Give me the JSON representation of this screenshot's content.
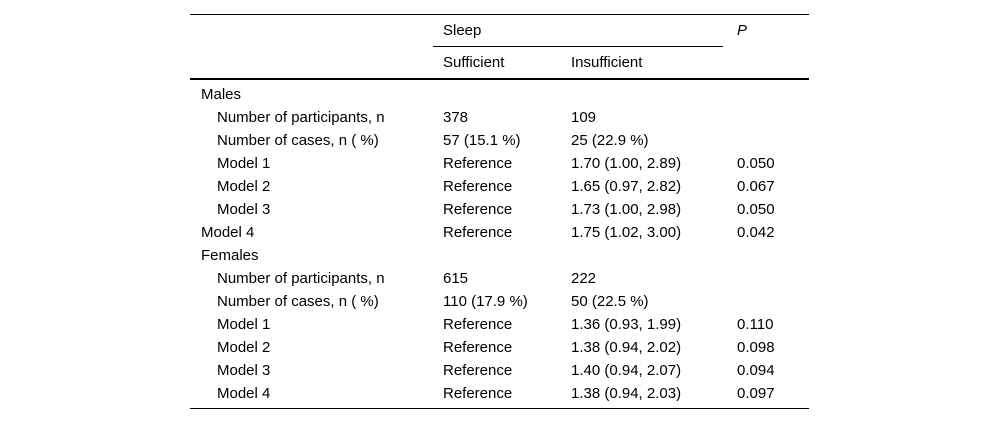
{
  "colors": {
    "text": "#000000",
    "background": "#ffffff",
    "rule": "#000000"
  },
  "table": {
    "header": {
      "group": "Sleep",
      "sufficient": "Sufficient",
      "insufficient": "Insufficient",
      "p": "P"
    },
    "rows": [
      {
        "label": "Males",
        "indent": 0,
        "sufficient": "",
        "insufficient": "",
        "p": ""
      },
      {
        "label": "Number of participants, n",
        "indent": 1,
        "sufficient": "378",
        "insufficient": "109",
        "p": ""
      },
      {
        "label": "Number of cases, n ( %)",
        "indent": 1,
        "sufficient": "57 (15.1 %)",
        "insufficient": "25 (22.9 %)",
        "p": ""
      },
      {
        "label": "Model 1",
        "indent": 1,
        "sufficient": "Reference",
        "insufficient": "1.70 (1.00, 2.89)",
        "p": "0.050"
      },
      {
        "label": "Model 2",
        "indent": 1,
        "sufficient": "Reference",
        "insufficient": "1.65 (0.97, 2.82)",
        "p": "0.067"
      },
      {
        "label": "Model 3",
        "indent": 1,
        "sufficient": "Reference",
        "insufficient": "1.73 (1.00, 2.98)",
        "p": "0.050"
      },
      {
        "label": "Model 4",
        "indent": 0,
        "sufficient": "Reference",
        "insufficient": "1.75 (1.02, 3.00)",
        "p": "0.042"
      },
      {
        "label": "Females",
        "indent": 0,
        "sufficient": "",
        "insufficient": "",
        "p": ""
      },
      {
        "label": "Number of participants, n",
        "indent": 1,
        "sufficient": "615",
        "insufficient": "222",
        "p": ""
      },
      {
        "label": "Number of cases, n ( %)",
        "indent": 1,
        "sufficient": "110 (17.9 %)",
        "insufficient": "50 (22.5 %)",
        "p": ""
      },
      {
        "label": "Model 1",
        "indent": 1,
        "sufficient": "Reference",
        "insufficient": "1.36 (0.93, 1.99)",
        "p": "0.110"
      },
      {
        "label": "Model 2",
        "indent": 1,
        "sufficient": "Reference",
        "insufficient": "1.38 (0.94, 2.02)",
        "p": "0.098"
      },
      {
        "label": "Model 3",
        "indent": 1,
        "sufficient": "Reference",
        "insufficient": "1.40 (0.94, 2.07)",
        "p": "0.094"
      },
      {
        "label": "Model 4",
        "indent": 1,
        "sufficient": "Reference",
        "insufficient": "1.38 (0.94, 2.03)",
        "p": "0.097"
      }
    ]
  }
}
